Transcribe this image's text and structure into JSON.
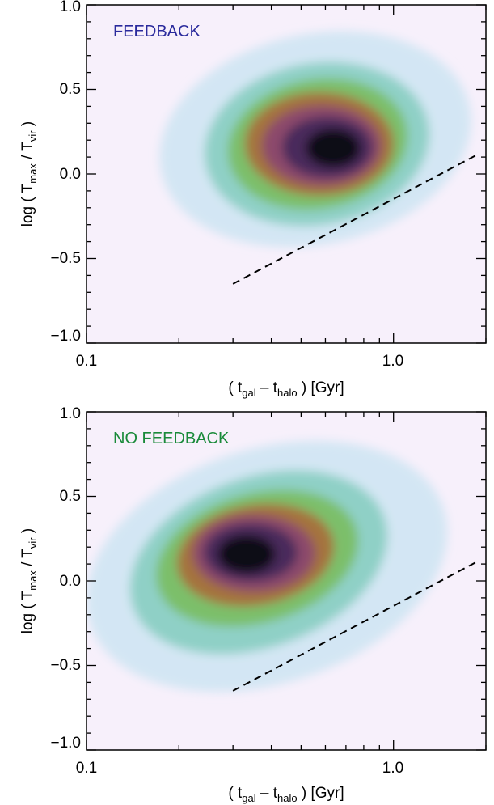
{
  "chart_data": [
    {
      "type": "heatmap",
      "annotation": "FEEDBACK",
      "annotation_color": "#2a2a9c",
      "x_scale": "log",
      "xlim": [
        0.1,
        2.0
      ],
      "ylim": [
        -1.0,
        1.0
      ],
      "x_ticks": [
        "0.1",
        "1.0"
      ],
      "y_ticks": [
        "1.0",
        "0.5",
        "0.0",
        "−0.5",
        "−1.0"
      ],
      "xlabel": {
        "pre": "( t",
        "sub1": "gal",
        "mid": " – t",
        "sub2": "halo",
        "post": " ) [Gyr]"
      },
      "ylabel": {
        "pre": "log ( T",
        "sub1": "max",
        "mid": " / T",
        "sub2": "vir",
        "post": " )"
      },
      "density_peak": {
        "x": 0.65,
        "y": 0.13
      },
      "dashed_line": {
        "x": [
          0.3,
          1.9
        ],
        "y": [
          -0.65,
          0.12
        ]
      }
    },
    {
      "type": "heatmap",
      "annotation": "NO FEEDBACK",
      "annotation_color": "#1a8a3a",
      "x_scale": "log",
      "xlim": [
        0.1,
        2.0
      ],
      "ylim": [
        -1.0,
        1.0
      ],
      "x_ticks": [
        "0.1",
        "1.0"
      ],
      "y_ticks": [
        "1.0",
        "0.5",
        "0.0",
        "−0.5",
        "−1.0"
      ],
      "xlabel": {
        "pre": "( t",
        "sub1": "gal",
        "mid": " – t",
        "sub2": "halo",
        "post": " ) [Gyr]"
      },
      "ylabel": {
        "pre": "log ( T",
        "sub1": "max",
        "mid": " / T",
        "sub2": "vir",
        "post": " )"
      },
      "density_peak": {
        "x": 0.33,
        "y": 0.13
      },
      "dashed_line": {
        "x": [
          0.3,
          1.9
        ],
        "y": [
          -0.65,
          0.12
        ]
      }
    }
  ]
}
